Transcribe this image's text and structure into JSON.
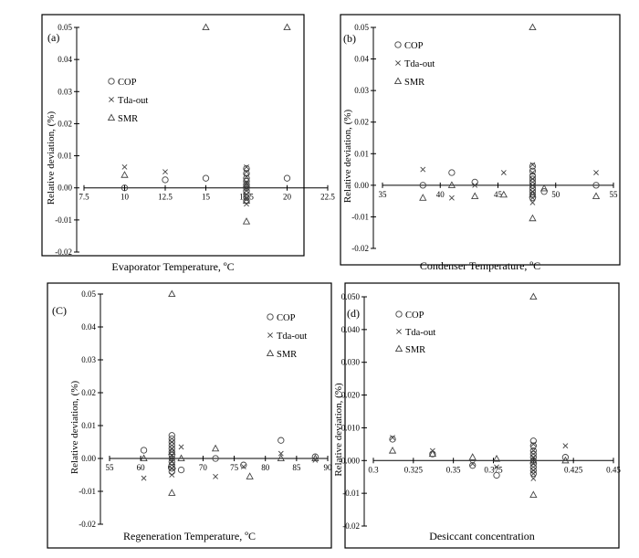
{
  "figure": {
    "background": "#ffffff",
    "frame_color": "#000000",
    "marker_color": "#444444"
  },
  "chart_data": [
    {
      "id": "a",
      "panel_label": "(a)",
      "type": "scatter",
      "xlabel": "Evaporator Temperature, ºC",
      "ylabel": "Relative deviation, (%)",
      "xlim": [
        7.5,
        22.5
      ],
      "ylim": [
        -0.02,
        0.05
      ],
      "xticks": [
        7.5,
        10,
        12.5,
        15,
        17.5,
        20,
        22.5
      ],
      "xtick_labels": [
        "7.5",
        "10",
        "12.5",
        "15",
        "17.5",
        "20",
        "22.5"
      ],
      "yticks": [
        -0.02,
        -0.01,
        0,
        0.01,
        0.02,
        0.03,
        0.04,
        0.05
      ],
      "ytick_labels": [
        "-0.02",
        "-0.01",
        "0.00",
        "0.01",
        "0.02",
        "0.03",
        "0.04",
        "0.05"
      ],
      "legend": [
        "COP",
        "Tda-out",
        "SMR"
      ],
      "series": [
        {
          "name": "COP",
          "marker": "circle",
          "x": [
            10,
            12.5,
            15,
            17.5,
            17.5,
            17.5,
            17.5,
            17.5,
            17.5,
            17.5,
            17.5,
            17.5,
            17.5,
            20
          ],
          "y": [
            0.0,
            0.0025,
            0.003,
            0.006,
            0.0045,
            0.003,
            0.002,
            0.001,
            0.0,
            -0.001,
            -0.002,
            -0.003,
            -0.004,
            0.003
          ]
        },
        {
          "name": "Tda-out",
          "marker": "x",
          "x": [
            10,
            12.5,
            17.5,
            17.5,
            17.5,
            17.5,
            17.5,
            17.5,
            17.5,
            17.5
          ],
          "y": [
            0.0065,
            0.005,
            0.0065,
            0.005,
            0.0035,
            0.0015,
            0.0,
            -0.002,
            -0.0035,
            -0.005
          ]
        },
        {
          "name": "SMR",
          "marker": "triangle",
          "x": [
            10,
            15,
            17.5,
            17.5,
            17.5,
            20
          ],
          "y": [
            0.004,
            0.05,
            0.001,
            -0.004,
            -0.0105,
            0.05
          ]
        }
      ]
    },
    {
      "id": "b",
      "panel_label": "(b)",
      "type": "scatter",
      "xlabel": "Condenser Temperature, ºC",
      "ylabel": "Relative deviation, (%)",
      "xlim": [
        35,
        55
      ],
      "ylim": [
        -0.02,
        0.05
      ],
      "xticks": [
        35,
        40,
        45,
        50,
        55
      ],
      "xtick_labels": [
        "35",
        "40",
        "45",
        "50",
        "55"
      ],
      "yticks": [
        -0.02,
        -0.01,
        0,
        0.01,
        0.02,
        0.03,
        0.04,
        0.05
      ],
      "ytick_labels": [
        "-0.02",
        "-0.01",
        "0.00",
        "0.01",
        "0.02",
        "0.03",
        "0.04",
        "0.05"
      ],
      "legend": [
        "COP",
        "Tda-out",
        "SMR"
      ],
      "series": [
        {
          "name": "COP",
          "marker": "circle",
          "x": [
            38.5,
            41,
            43,
            48,
            48,
            48,
            48,
            48,
            48,
            48,
            48,
            48,
            48,
            49,
            53.5
          ],
          "y": [
            0.0,
            0.004,
            0.001,
            0.006,
            0.0045,
            0.003,
            0.002,
            0.001,
            0.0,
            -0.001,
            -0.002,
            -0.003,
            -0.004,
            -0.002,
            0.0
          ]
        },
        {
          "name": "Tda-out",
          "marker": "x",
          "x": [
            38.5,
            41,
            43,
            45.5,
            48,
            48,
            48,
            48,
            48,
            48,
            48,
            53.5
          ],
          "y": [
            0.005,
            -0.004,
            0.0,
            0.004,
            0.0065,
            0.004,
            0.002,
            0.0,
            -0.002,
            -0.004,
            -0.0055,
            0.004
          ]
        },
        {
          "name": "SMR",
          "marker": "triangle",
          "x": [
            38.5,
            41,
            43,
            45.5,
            48,
            48,
            48,
            49,
            53.5
          ],
          "y": [
            -0.004,
            0.0,
            -0.0035,
            -0.003,
            0.05,
            -0.003,
            -0.0105,
            -0.001,
            -0.0035
          ]
        }
      ]
    },
    {
      "id": "c",
      "panel_label": "(C)",
      "type": "scatter",
      "xlabel": "Regeneration Temperature, ºC",
      "ylabel": "Relative deviation, (%)",
      "xlim": [
        55,
        90
      ],
      "ylim": [
        -0.02,
        0.05
      ],
      "xticks": [
        55,
        60,
        65,
        70,
        75,
        80,
        85,
        90
      ],
      "xtick_labels": [
        "55",
        "60",
        "65",
        "70",
        "75",
        "80",
        "85",
        "90"
      ],
      "yticks": [
        -0.02,
        -0.01,
        0,
        0.01,
        0.02,
        0.03,
        0.04,
        0.05
      ],
      "ytick_labels": [
        "-0.02",
        "-0.01",
        "0.00",
        "0.01",
        "0.02",
        "0.03",
        "0.04",
        "0.05"
      ],
      "legend": [
        "COP",
        "Tda-out",
        "SMR"
      ],
      "series": [
        {
          "name": "COP",
          "marker": "circle",
          "x": [
            60.5,
            65,
            65,
            65,
            65,
            65,
            65,
            65,
            65,
            65,
            65,
            65,
            65,
            66.5,
            72,
            76.5,
            82.5,
            88
          ],
          "y": [
            0.0025,
            0.007,
            0.006,
            0.005,
            0.004,
            0.003,
            0.002,
            0.001,
            0.0,
            -0.001,
            -0.002,
            -0.003,
            -0.004,
            -0.0035,
            0.0,
            -0.002,
            0.0055,
            0.0005
          ]
        },
        {
          "name": "Tda-out",
          "marker": "x",
          "x": [
            60.5,
            65,
            65,
            65,
            65,
            65,
            65,
            66.5,
            72,
            76.5,
            82.5,
            88
          ],
          "y": [
            -0.006,
            0.005,
            0.003,
            0.001,
            -0.001,
            -0.003,
            -0.005,
            0.0035,
            -0.0055,
            -0.0025,
            0.0015,
            -0.0005
          ]
        },
        {
          "name": "SMR",
          "marker": "triangle",
          "x": [
            60.5,
            65,
            65,
            65,
            66.5,
            72,
            77.5,
            82.5,
            88
          ],
          "y": [
            0.0,
            0.05,
            0.002,
            -0.0105,
            0.0,
            0.003,
            -0.0055,
            0.0,
            0.0
          ]
        }
      ]
    },
    {
      "id": "d",
      "panel_label": "(d)",
      "type": "scatter",
      "xlabel": "Desiccant concentration",
      "ylabel": "Relative deviation, (%)",
      "xlim": [
        0.3,
        0.45
      ],
      "ylim": [
        -0.02,
        0.05
      ],
      "xticks": [
        0.3,
        0.325,
        0.35,
        0.375,
        0.4,
        0.425,
        0.45
      ],
      "xtick_labels": [
        "0.3",
        "0.325",
        "0.35",
        "0.375",
        "",
        "0.425",
        "0.45"
      ],
      "yticks": [
        -0.02,
        -0.01,
        0,
        0.01,
        0.02,
        0.03,
        0.04,
        0.05
      ],
      "ytick_labels": [
        "-0.02",
        "-0.01",
        "0.000",
        "0.010",
        "0.020",
        "0.030",
        "0.040",
        "0.050"
      ],
      "legend": [
        "COP",
        "Tda-out",
        "SMR"
      ],
      "series": [
        {
          "name": "COP",
          "marker": "circle",
          "x": [
            0.312,
            0.337,
            0.362,
            0.377,
            0.4,
            0.4,
            0.4,
            0.4,
            0.4,
            0.4,
            0.4,
            0.4,
            0.4,
            0.4,
            0.42
          ],
          "y": [
            0.0065,
            0.002,
            -0.0015,
            -0.0045,
            0.006,
            0.0045,
            0.003,
            0.002,
            0.001,
            0.0,
            -0.001,
            -0.002,
            -0.003,
            -0.004,
            0.001
          ]
        },
        {
          "name": "Tda-out",
          "marker": "x",
          "x": [
            0.312,
            0.337,
            0.362,
            0.377,
            0.4,
            0.4,
            0.4,
            0.4,
            0.4,
            0.4,
            0.4,
            0.42
          ],
          "y": [
            0.007,
            0.003,
            -0.001,
            -0.002,
            0.005,
            0.003,
            0.001,
            -0.001,
            -0.003,
            -0.0055,
            -0.004,
            0.0045
          ]
        },
        {
          "name": "SMR",
          "marker": "triangle",
          "x": [
            0.312,
            0.337,
            0.362,
            0.377,
            0.4,
            0.4,
            0.4,
            0.42
          ],
          "y": [
            0.003,
            0.002,
            0.001,
            0.0005,
            0.05,
            0.0,
            -0.0105,
            0.0
          ]
        }
      ]
    }
  ]
}
